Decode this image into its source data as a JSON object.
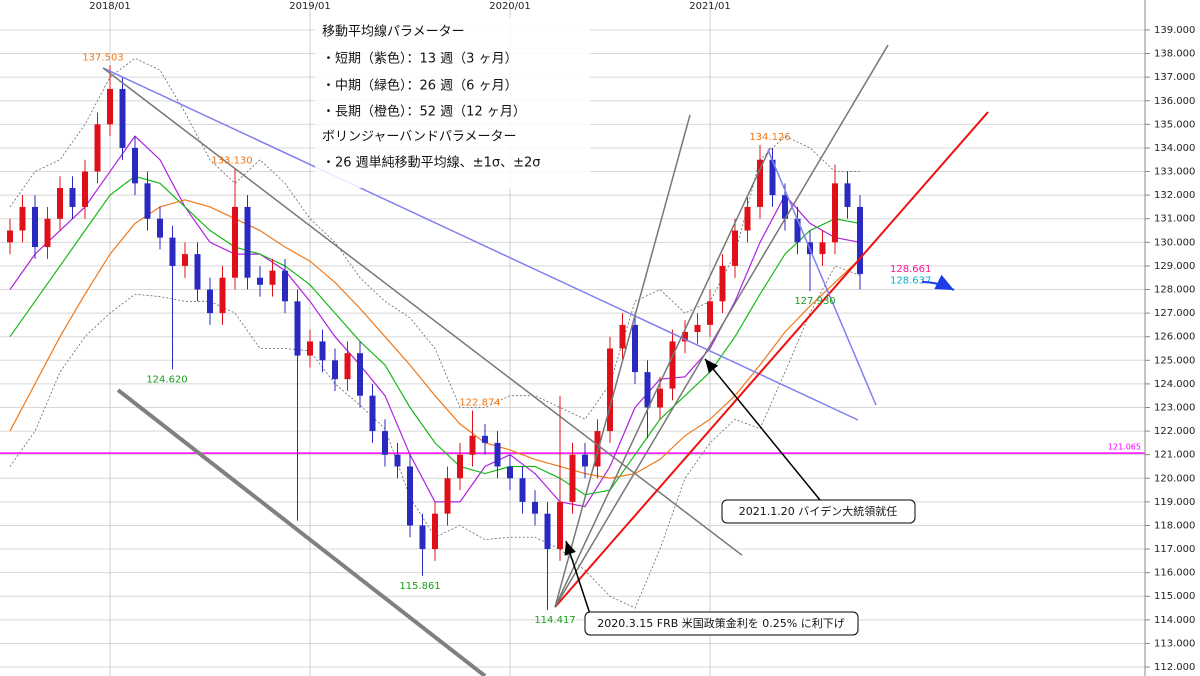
{
  "chart_data": {
    "type": "candlestick",
    "xlim": [
      2017.45,
      2023.175
    ],
    "ylim": [
      111.62,
      140.27
    ],
    "xticks": [
      {
        "value": 2018,
        "label": "2018/01"
      },
      {
        "value": 2019,
        "label": "2019/01"
      },
      {
        "value": 2020,
        "label": "2020/01"
      },
      {
        "value": 2021,
        "label": "2021/01"
      }
    ],
    "yticks": [
      {
        "value": 112,
        "label": "112.000"
      },
      {
        "value": 113,
        "label": "113.000"
      },
      {
        "value": 114,
        "label": "114.000"
      },
      {
        "value": 115,
        "label": "115.000"
      },
      {
        "value": 116,
        "label": "116.000"
      },
      {
        "value": 117,
        "label": "117.000"
      },
      {
        "value": 118,
        "label": "118.000"
      },
      {
        "value": 119,
        "label": "119.000"
      },
      {
        "value": 120,
        "label": "120.000"
      },
      {
        "value": 121,
        "label": "121.000"
      },
      {
        "value": 122,
        "label": "122.000"
      },
      {
        "value": 123,
        "label": "123.000"
      },
      {
        "value": 124,
        "label": "124.000"
      },
      {
        "value": 125,
        "label": "125.000"
      },
      {
        "value": 126,
        "label": "126.000"
      },
      {
        "value": 127,
        "label": "127.000"
      },
      {
        "value": 128,
        "label": "128.000"
      },
      {
        "value": 129,
        "label": "129.000"
      },
      {
        "value": 130,
        "label": "130.000"
      },
      {
        "value": 131,
        "label": "131.000"
      },
      {
        "value": 132,
        "label": "132.000"
      },
      {
        "value": 133,
        "label": "133.000"
      },
      {
        "value": 134,
        "label": "134.000"
      },
      {
        "value": 135,
        "label": "135.000"
      },
      {
        "value": 136,
        "label": "136.000"
      },
      {
        "value": 137,
        "label": "137.000"
      },
      {
        "value": 138,
        "label": "138.000"
      },
      {
        "value": 139,
        "label": "139.000"
      }
    ],
    "grid": true,
    "up_color": "#e0101a",
    "down_color": "#2a2ac0",
    "candles": {
      "x": [
        2017.5,
        2017.5625,
        2017.625,
        2017.6875,
        2017.75,
        2017.8125,
        2017.875,
        2017.9375,
        2018.0,
        2018.0625,
        2018.125,
        2018.1875,
        2018.25,
        2018.3125,
        2018.375,
        2018.4375,
        2018.5,
        2018.5625,
        2018.625,
        2018.6875,
        2018.75,
        2018.8125,
        2018.875,
        2018.9375,
        2019.0,
        2019.0625,
        2019.125,
        2019.1875,
        2019.25,
        2019.3125,
        2019.375,
        2019.4375,
        2019.5,
        2019.5625,
        2019.625,
        2019.6875,
        2019.75,
        2019.8125,
        2019.875,
        2019.9375,
        2020.0,
        2020.0625,
        2020.125,
        2020.1875,
        2020.25,
        2020.3125,
        2020.375,
        2020.4375,
        2020.5,
        2020.5625,
        2020.625,
        2020.6875,
        2020.75,
        2020.8125,
        2020.875,
        2020.9375,
        2021.0,
        2021.0625,
        2021.125,
        2021.1875,
        2021.25,
        2021.3125,
        2021.375,
        2021.4375,
        2021.5,
        2021.5625,
        2021.625,
        2021.6875,
        2021.75
      ],
      "open": [
        130.0,
        130.5,
        131.5,
        129.8,
        131.0,
        132.3,
        131.5,
        133.0,
        135.0,
        136.5,
        134.0,
        132.5,
        131.0,
        130.2,
        129.0,
        129.5,
        128.0,
        127.0,
        128.5,
        131.5,
        128.5,
        128.2,
        128.8,
        127.5,
        125.2,
        125.8,
        125.0,
        124.2,
        125.3,
        123.5,
        122.0,
        121.0,
        120.5,
        118.0,
        117.0,
        118.5,
        120.0,
        121.0,
        121.8,
        121.5,
        120.5,
        120.0,
        119.0,
        118.5,
        117.0,
        119.0,
        121.0,
        120.5,
        122.0,
        125.5,
        126.5,
        124.5,
        123.0,
        123.8,
        125.8,
        126.2,
        126.5,
        127.5,
        129.0,
        130.5,
        131.5,
        133.5,
        132.0,
        131.0,
        130.0,
        129.5,
        130.0,
        132.5,
        131.5
      ],
      "high": [
        131.0,
        132.0,
        132.0,
        131.5,
        132.8,
        132.8,
        133.5,
        135.5,
        137.503,
        137.0,
        134.5,
        133.0,
        131.5,
        130.7,
        130.0,
        130.0,
        128.5,
        129.0,
        133.13,
        132.0,
        129.0,
        129.3,
        129.3,
        128.0,
        126.3,
        126.3,
        125.5,
        125.8,
        125.8,
        124.0,
        122.5,
        121.5,
        121.0,
        118.5,
        119.0,
        120.5,
        121.5,
        122.874,
        122.3,
        122.0,
        121.0,
        120.5,
        119.5,
        119.0,
        123.5,
        121.5,
        121.5,
        122.5,
        126.0,
        127.0,
        127.0,
        125.0,
        124.3,
        126.3,
        126.7,
        127.0,
        128.0,
        129.5,
        131.0,
        132.0,
        134.126,
        134.0,
        132.5,
        131.5,
        130.5,
        130.5,
        133.3,
        133.0,
        132.0
      ],
      "low": [
        129.5,
        130.0,
        129.3,
        129.3,
        130.5,
        131.0,
        131.0,
        132.5,
        134.5,
        133.5,
        132.0,
        130.5,
        129.7,
        124.62,
        128.5,
        127.5,
        126.5,
        126.5,
        128.0,
        128.0,
        127.7,
        127.7,
        127.0,
        118.2,
        124.7,
        124.5,
        123.7,
        123.7,
        123.0,
        121.5,
        120.5,
        120.0,
        117.5,
        115.861,
        116.5,
        118.0,
        119.5,
        120.5,
        121.0,
        120.0,
        119.5,
        118.5,
        118.0,
        114.417,
        116.5,
        118.5,
        120.0,
        120.0,
        121.5,
        125.0,
        124.0,
        121.7,
        122.5,
        123.3,
        125.3,
        125.7,
        126.0,
        127.0,
        128.5,
        130.0,
        131.0,
        131.5,
        130.5,
        129.5,
        127.93,
        129.0,
        129.5,
        131.0,
        128.0
      ],
      "close": [
        130.5,
        131.5,
        129.8,
        131.0,
        132.3,
        131.5,
        133.0,
        135.0,
        136.5,
        134.0,
        132.5,
        131.0,
        130.2,
        129.0,
        129.5,
        128.0,
        127.0,
        128.5,
        131.5,
        128.5,
        128.2,
        128.8,
        127.5,
        125.2,
        125.8,
        125.0,
        124.2,
        125.3,
        123.5,
        122.0,
        121.0,
        120.5,
        118.0,
        117.0,
        118.5,
        120.0,
        121.0,
        121.8,
        121.5,
        120.5,
        120.0,
        119.0,
        118.5,
        117.0,
        119.0,
        121.0,
        120.5,
        122.0,
        125.5,
        126.5,
        124.5,
        123.0,
        123.8,
        125.8,
        126.2,
        126.5,
        127.5,
        129.0,
        130.5,
        131.5,
        133.5,
        132.0,
        131.0,
        130.0,
        129.5,
        130.0,
        132.5,
        131.5,
        128.66
      ]
    },
    "indicator_x": [
      2017.5,
      2017.625,
      2017.75,
      2017.875,
      2018.0,
      2018.125,
      2018.25,
      2018.375,
      2018.5,
      2018.625,
      2018.75,
      2018.875,
      2019.0,
      2019.125,
      2019.25,
      2019.375,
      2019.5,
      2019.625,
      2019.75,
      2019.875,
      2020.0,
      2020.125,
      2020.25,
      2020.375,
      2020.5,
      2020.625,
      2020.75,
      2020.875,
      2021.0,
      2021.125,
      2021.25,
      2021.375,
      2021.5,
      2021.625,
      2021.75
    ],
    "indicators": [
      {
        "color": "#b020e0",
        "dash": false,
        "values": [
          128.0,
          129.5,
          130.5,
          131.5,
          133.0,
          134.5,
          133.5,
          131.5,
          130.0,
          129.5,
          129.5,
          128.8,
          127.5,
          126.0,
          124.8,
          123.5,
          121.0,
          119.0,
          119.0,
          120.5,
          121.0,
          120.2,
          119.0,
          118.8,
          120.5,
          123.0,
          124.2,
          124.3,
          125.5,
          127.5,
          130.0,
          132.0,
          130.8,
          130.2,
          130.0
        ]
      },
      {
        "color": "#18b818",
        "dash": false,
        "values": [
          126.0,
          127.5,
          129.0,
          130.5,
          132.0,
          132.8,
          132.5,
          131.5,
          130.5,
          129.8,
          129.5,
          129.0,
          128.2,
          127.0,
          125.8,
          124.8,
          123.0,
          121.5,
          120.5,
          120.2,
          120.5,
          120.5,
          120.0,
          119.3,
          119.5,
          121.0,
          122.5,
          123.5,
          124.5,
          126.0,
          127.8,
          129.5,
          130.5,
          131.0,
          130.8
        ]
      },
      {
        "color": "#f07818",
        "dash": false,
        "values": [
          122.0,
          124.0,
          126.0,
          127.8,
          129.5,
          130.8,
          131.5,
          131.8,
          131.5,
          131.0,
          130.5,
          129.8,
          129.2,
          128.3,
          127.2,
          126.0,
          124.8,
          123.5,
          122.3,
          121.5,
          121.2,
          120.8,
          120.5,
          120.2,
          120.0,
          120.2,
          120.8,
          121.8,
          122.5,
          123.5,
          124.8,
          126.2,
          127.3,
          128.3,
          129.3
        ]
      },
      {
        "color": "#666666",
        "dash": true,
        "values": [
          131.5,
          133.0,
          133.5,
          135.0,
          137.0,
          137.8,
          137.3,
          135.5,
          133.5,
          132.5,
          133.5,
          132.5,
          131.0,
          130.0,
          128.5,
          127.5,
          126.8,
          125.5,
          123.0,
          123.0,
          123.5,
          123.5,
          123.0,
          122.5,
          124.0,
          127.5,
          128.0,
          127.0,
          127.5,
          129.5,
          133.5,
          134.5,
          134.0,
          133.0,
          133.0
        ]
      },
      {
        "color": "#666666",
        "dash": true,
        "values": [
          120.5,
          122.0,
          124.5,
          126.0,
          127.0,
          127.8,
          127.7,
          127.5,
          127.5,
          127.0,
          125.5,
          125.5,
          125.4,
          124.0,
          123.1,
          122.1,
          119.2,
          117.5,
          118.0,
          117.4,
          117.5,
          117.5,
          117.0,
          116.1,
          115.0,
          114.5,
          117.0,
          120.0,
          121.5,
          122.5,
          122.1,
          124.5,
          127.0,
          129.0,
          128.6
        ]
      }
    ],
    "trendlines": [
      {
        "x": [
          2017.965,
          2021.74
        ],
        "y": [
          137.39,
          122.47
        ],
        "color": "#8080f0",
        "width": 1.5
      },
      {
        "x": [
          2017.965,
          2021.16
        ],
        "y": [
          137.39,
          116.74
        ],
        "color": "#777777",
        "width": 1.5
      },
      {
        "x": [
          2018.04,
          2019.875
        ],
        "y": [
          123.74,
          111.62
        ],
        "color": "#808080",
        "width": 4
      },
      {
        "x": [
          2020.225,
          2022.39
        ],
        "y": [
          114.54,
          135.52
        ],
        "color": "#ee1111",
        "width": 2
      },
      {
        "x": [
          2020.225,
          2020.9
        ],
        "y": [
          114.54,
          135.4
        ],
        "color": "#777777",
        "width": 1.5
      },
      {
        "x": [
          2020.225,
          2021.3
        ],
        "y": [
          114.54,
          134.0
        ],
        "color": "#777777",
        "width": 1.5
      },
      {
        "x": [
          2020.225,
          2021.89
        ],
        "y": [
          114.54,
          138.36
        ],
        "color": "#777777",
        "width": 1.5
      },
      {
        "x": [
          2021.29,
          2021.83
        ],
        "y": [
          133.91,
          123.1
        ],
        "color": "#8080f0",
        "width": 1.5
      }
    ],
    "hline": {
      "value": 121.065,
      "label": "121.065",
      "color": "#ff00ff"
    },
    "annotations": [
      {
        "x": 2017.965,
        "value": 137.503,
        "label": "137.503",
        "color": "#f07818",
        "position": "above"
      },
      {
        "x": 2018.61,
        "value": 133.13,
        "label": "133.130",
        "color": "#f07818",
        "position": "above"
      },
      {
        "x": 2018.285,
        "value": 124.62,
        "label": "124.620",
        "color": "#18a018",
        "position": "below"
      },
      {
        "x": 2019.85,
        "value": 122.874,
        "label": "122.874",
        "color": "#f07818",
        "position": "above"
      },
      {
        "x": 2019.55,
        "value": 115.861,
        "label": "115.861",
        "color": "#18a018",
        "position": "below"
      },
      {
        "x": 2020.225,
        "value": 114.417,
        "label": "114.417",
        "color": "#18a018",
        "position": "below"
      },
      {
        "x": 2021.3,
        "value": 134.126,
        "label": "134.126",
        "color": "#f07818",
        "position": "above"
      },
      {
        "x": 2021.525,
        "value": 127.93,
        "label": "127.930",
        "color": "#18a018",
        "position": "below"
      },
      {
        "x": 2021.9,
        "value": 128.661,
        "label": "128.661",
        "color": "#ff1493",
        "position": "right"
      },
      {
        "x": 2021.9,
        "value": 128.637,
        "label": "128.637",
        "color": "#00b0d0",
        "position": "right"
      }
    ],
    "notes": [
      "移動平均線パラメーター",
      "・短期（紫色）：13 週（3 ヶ月）",
      "・中期（緑色）：26 週（6 ヶ月）",
      "・長期（橙色）：52 週（12 ヶ月）",
      "ボリンジャーバンドパラメーター",
      "・26 週単純移動平均線、±1σ、±2σ"
    ],
    "callouts": [
      "2021.1.20 バイデン大統領就任",
      "2020.3.15 FRB 米国政策金利を 0.25% に利下げ"
    ]
  }
}
